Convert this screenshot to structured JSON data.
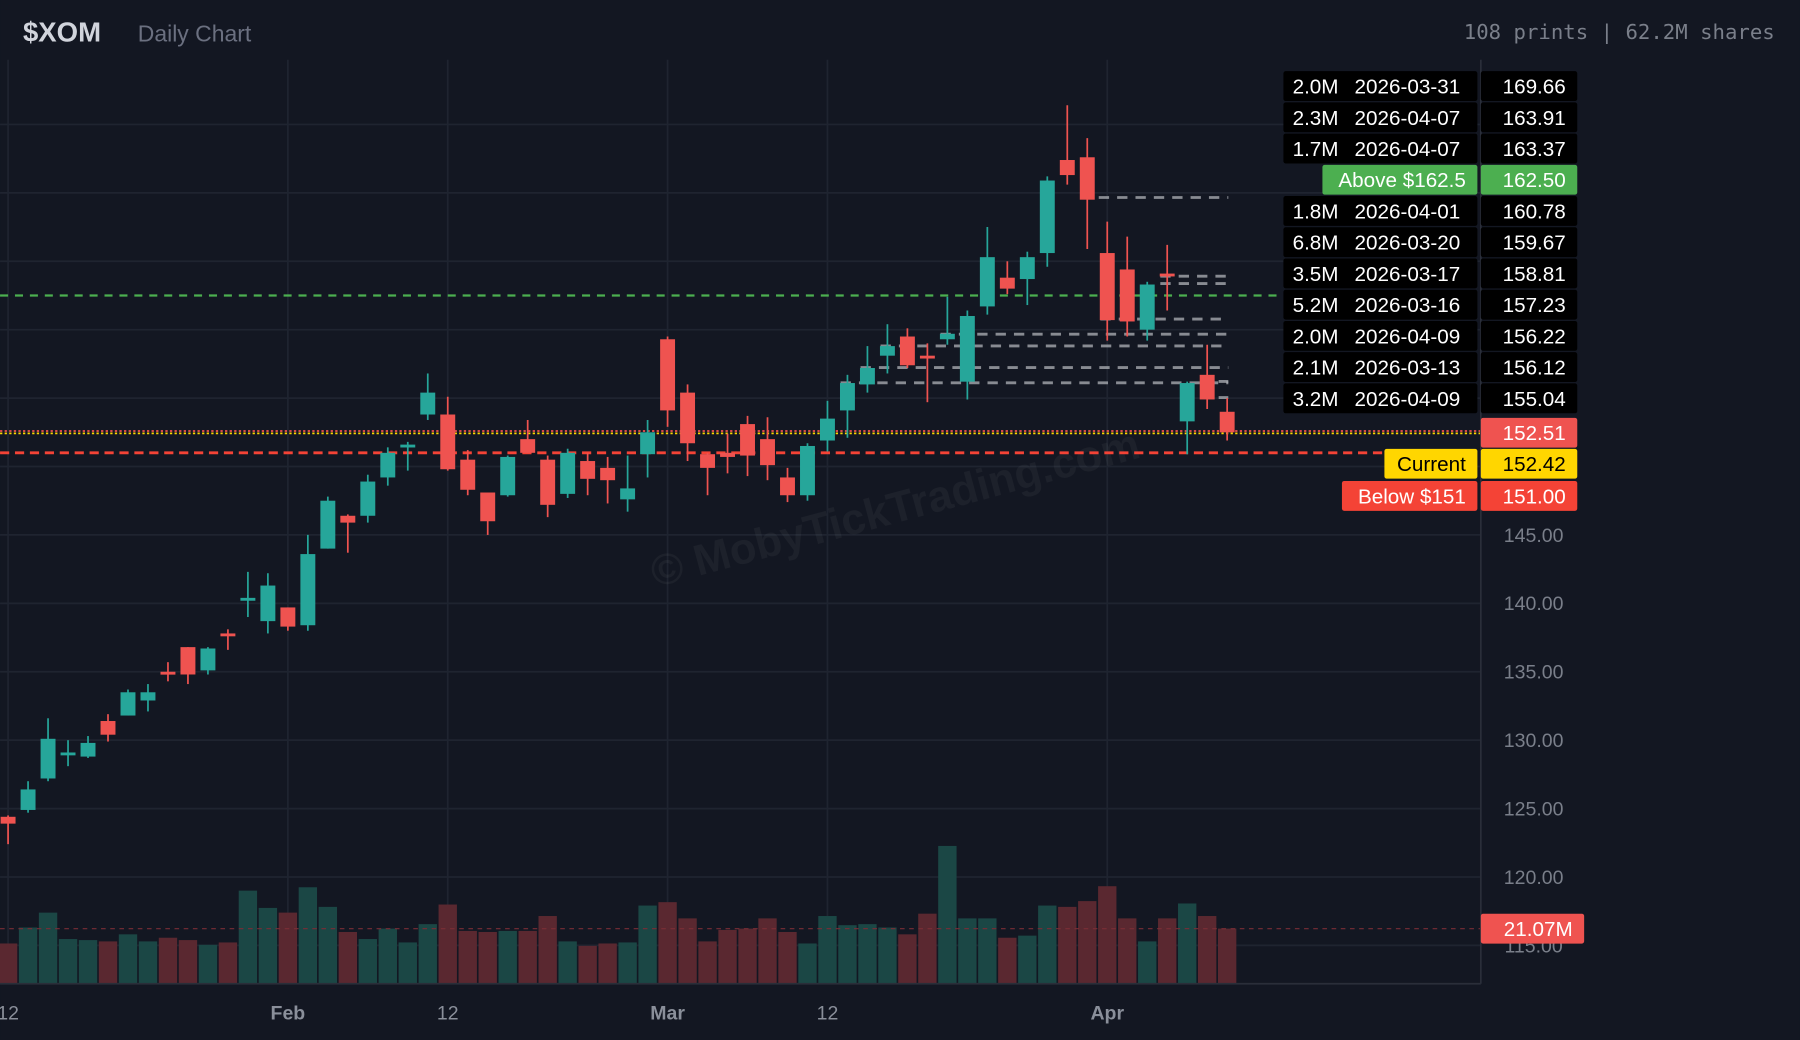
{
  "header": {
    "ticker": "$XOM",
    "subtitle": "Daily Chart",
    "stats": "108 prints | 62.2M shares"
  },
  "watermark": "© MobyTickTrading.com",
  "colors": {
    "background": "#131722",
    "up": "#26a69a",
    "down": "#ef5350",
    "volume_up": "#1b4745",
    "volume_down": "#5a2830",
    "grid": "#1f2430",
    "print_line": "#b0b3b8",
    "above_alert": "#4caf50",
    "below_alert": "#f44336",
    "current": "#ffd600"
  },
  "chart_data": {
    "type": "candlestick",
    "x_ticks": [
      {
        "label": "12",
        "bold": false,
        "index": 0
      },
      {
        "label": "Feb",
        "bold": true,
        "index": 14
      },
      {
        "label": "12",
        "bold": false,
        "index": 22
      },
      {
        "label": "Mar",
        "bold": true,
        "index": 33
      },
      {
        "label": "12",
        "bold": false,
        "index": 41
      },
      {
        "label": "Apr",
        "bold": true,
        "index": 55
      }
    ],
    "y_ticks": [
      "145.00",
      "140.00",
      "135.00",
      "130.00",
      "125.00",
      "120.00",
      "115.00"
    ],
    "ylim": [
      112,
      178
    ],
    "grid": true,
    "open": [
      124.4,
      124.9,
      127.2,
      129.0,
      128.8,
      131.4,
      131.8,
      132.9,
      135.0,
      136.8,
      135.1,
      137.8,
      140.2,
      138.7,
      139.7,
      138.4,
      144.0,
      146.4,
      146.4,
      149.2,
      151.4,
      153.8,
      153.8,
      150.5,
      148.1,
      147.9,
      152.0,
      150.5,
      148.0,
      150.4,
      149.9,
      147.6,
      150.9,
      159.3,
      155.4,
      150.9,
      151.0,
      153.1,
      152.0,
      149.2,
      147.9,
      151.9,
      154.1,
      156.0,
      158.1,
      159.5,
      158.1,
      159.3,
      156.2,
      161.7,
      163.8,
      163.7,
      165.6,
      172.4,
      172.6,
      165.6,
      164.4,
      160.0,
      164.1,
      153.3,
      156.7,
      154.0
    ],
    "high": [
      124.5,
      127.0,
      131.6,
      130.0,
      130.3,
      131.9,
      133.7,
      134.1,
      135.7,
      136.8,
      136.8,
      138.1,
      142.3,
      142.2,
      139.7,
      145.0,
      147.8,
      146.5,
      149.4,
      151.4,
      151.8,
      156.8,
      155.1,
      151.2,
      148.1,
      150.8,
      153.4,
      150.8,
      151.3,
      151.0,
      150.7,
      150.8,
      153.4,
      159.5,
      156.0,
      151.0,
      152.4,
      153.7,
      153.6,
      149.9,
      151.7,
      154.8,
      156.7,
      158.8,
      160.4,
      160.1,
      159.0,
      162.4,
      161.4,
      167.5,
      165.0,
      165.7,
      171.2,
      176.4,
      174.0,
      167.9,
      166.8,
      163.5,
      166.2,
      156.2,
      158.9,
      155.0
    ],
    "low": [
      122.4,
      124.7,
      127.0,
      128.1,
      128.7,
      129.9,
      131.8,
      132.1,
      134.3,
      134.1,
      134.8,
      136.6,
      139.0,
      137.8,
      138.0,
      138.0,
      144.0,
      143.7,
      145.9,
      148.6,
      149.7,
      153.4,
      149.7,
      147.9,
      145.0,
      147.8,
      151.0,
      146.3,
      147.7,
      147.9,
      147.3,
      146.7,
      149.2,
      152.9,
      150.4,
      147.9,
      149.5,
      149.3,
      149.0,
      147.4,
      147.5,
      151.1,
      152.1,
      155.4,
      156.8,
      157.2,
      154.7,
      158.9,
      154.9,
      161.1,
      162.6,
      161.8,
      164.6,
      170.6,
      165.9,
      159.2,
      159.5,
      159.2,
      161.4,
      150.9,
      154.2,
      151.9
    ],
    "close": [
      123.9,
      126.4,
      130.1,
      129.1,
      129.8,
      130.4,
      133.5,
      133.5,
      134.8,
      134.8,
      136.7,
      137.6,
      140.4,
      141.3,
      138.3,
      143.6,
      147.5,
      145.9,
      148.9,
      151.0,
      151.6,
      155.4,
      149.8,
      148.3,
      146.0,
      150.7,
      151.0,
      147.2,
      151.0,
      149.1,
      149.0,
      148.4,
      152.5,
      154.1,
      151.7,
      149.9,
      150.7,
      150.8,
      150.1,
      147.9,
      151.5,
      153.5,
      156.1,
      157.2,
      158.8,
      157.4,
      157.9,
      159.7,
      161.0,
      165.3,
      163.0,
      165.3,
      170.9,
      171.3,
      169.5,
      160.7,
      160.6,
      163.3,
      163.9,
      156.1,
      154.9,
      152.5
    ],
    "volume_millions": [
      15.4,
      21.5,
      27.2,
      17.1,
      16.7,
      16.2,
      18.9,
      16.2,
      17.6,
      16.7,
      14.9,
      15.8,
      35.6,
      29.0,
      27.2,
      36.9,
      29.4,
      19.8,
      17.1,
      21.1,
      15.8,
      22.8,
      30.3,
      20.2,
      19.8,
      20.2,
      20.2,
      25.9,
      16.2,
      14.5,
      15.4,
      15.8,
      29.9,
      31.2,
      25.0,
      16.2,
      20.6,
      21.1,
      25.0,
      19.8,
      15.4,
      25.9,
      22.4,
      22.8,
      21.5,
      18.9,
      26.8,
      52.7,
      25.0,
      25.0,
      17.6,
      18.4,
      29.9,
      29.4,
      31.6,
      37.3,
      25.0,
      16.2,
      25.0,
      30.7,
      25.9,
      21.1
    ],
    "volume_average_label": "21.07M",
    "volume_average": 21.07
  },
  "prints": [
    {
      "volume": "2.0M",
      "date": "2026-03-31",
      "price": "169.66"
    },
    {
      "volume": "2.3M",
      "date": "2026-04-07",
      "price": "163.91"
    },
    {
      "volume": "1.7M",
      "date": "2026-04-07",
      "price": "163.37"
    },
    {
      "volume": "1.8M",
      "date": "2026-04-01",
      "price": "160.78"
    },
    {
      "volume": "6.8M",
      "date": "2026-03-20",
      "price": "159.67"
    },
    {
      "volume": "3.5M",
      "date": "2026-03-17",
      "price": "158.81"
    },
    {
      "volume": "5.2M",
      "date": "2026-03-16",
      "price": "157.23"
    },
    {
      "volume": "2.0M",
      "date": "2026-04-09",
      "price": "156.22"
    },
    {
      "volume": "2.1M",
      "date": "2026-03-13",
      "price": "156.12"
    },
    {
      "volume": "3.2M",
      "date": "2026-04-09",
      "price": "155.04"
    }
  ],
  "levels": {
    "above": {
      "label": "Above $162.5",
      "price": "162.50"
    },
    "last": {
      "price": "152.51"
    },
    "current": {
      "label": "Current",
      "price": "152.42"
    },
    "below": {
      "label": "Below $151",
      "price": "151.00"
    }
  }
}
